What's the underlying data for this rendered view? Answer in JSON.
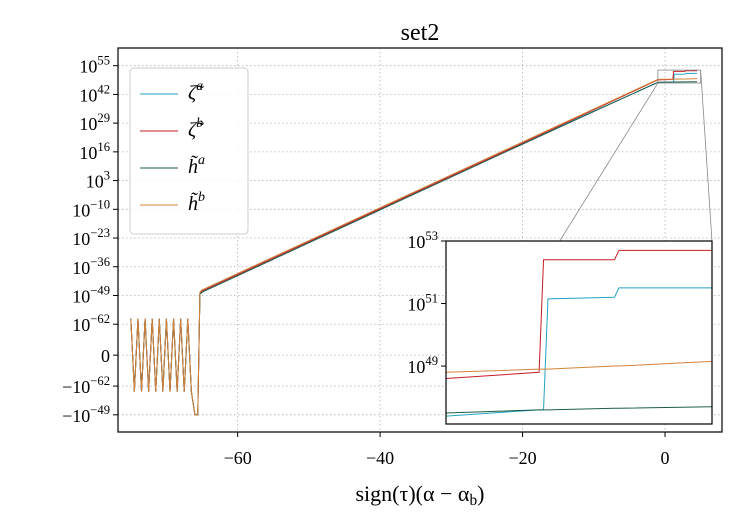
{
  "chart_data": [
    {
      "type": "line",
      "title": "set2",
      "x_label": "sign(τ)(α − α_b)",
      "yscale": "symlog",
      "linthresh": 1e-75,
      "grid": true,
      "legend": "upper left",
      "xlim": [
        -76.8,
        8
      ],
      "ylim": [
        -6e-42,
        1e+63
      ],
      "xticks": [
        {
          "value": -60,
          "label": "−60"
        },
        {
          "value": -40,
          "label": "−40"
        },
        {
          "value": -20,
          "label": "−20"
        },
        0
      ],
      "yticks": [
        {
          "value": 1e+55,
          "label": "10^55"
        },
        {
          "value": 1e+42,
          "label": "10^42"
        },
        {
          "value": 1e+29,
          "label": "10^29"
        },
        {
          "value": 1e+16,
          "label": "10^16"
        },
        {
          "value": 1000.0,
          "label": "10^3"
        },
        {
          "value": 1e-10,
          "label": "10^−10"
        },
        {
          "value": 1e-23,
          "label": "10^−23"
        },
        {
          "value": 1e-36,
          "label": "10^−36"
        },
        {
          "value": 1e-49,
          "label": "10^−49"
        },
        {
          "value": 1e-62,
          "label": "10^−62"
        },
        0,
        {
          "value": -1e-62,
          "label": "−10^−62"
        },
        {
          "value": -1e-49,
          "label": "−10^−49"
        }
      ],
      "x": [
        -75,
        -74.5,
        -74,
        -73.5,
        -73,
        -72.5,
        -72,
        -71.5,
        -71,
        -70.5,
        -70,
        -69.5,
        -69,
        -68.5,
        -68,
        -67.5,
        -67,
        -66.5,
        -66,
        -65.6,
        -65.3,
        -65,
        -40,
        -20,
        -1,
        1.1,
        1.2,
        1.3,
        2.8,
        2.9,
        4.5
      ],
      "series": [
        {
          "name": "ζ̃^a",
          "color": "#23a3c2",
          "values": [
            3e-60,
            -3e-60,
            3e-60,
            -3e-60,
            3e-60,
            -3e-60,
            3e-60,
            -3e-60,
            3e-60,
            -3e-60,
            3e-60,
            -3e-60,
            3e-60,
            -3e-60,
            3e-60,
            -3e-60,
            3e-60,
            -3e-60,
            -1e-49,
            -1e-49,
            1e-48,
            1e-47,
            1.78e-10,
            1e+20,
            2.51e+47,
            3.98e+47,
            3.98e+47,
            1.41e+51,
            1.58e+51,
            3.16e+51,
            3.16e+51
          ]
        },
        {
          "name": "ζ̃^b",
          "color": "#c81d25",
          "values": [
            3e-60,
            -3e-60,
            3e-60,
            -3e-60,
            3e-60,
            -3e-60,
            3e-60,
            -3e-60,
            3e-60,
            -3e-60,
            3e-60,
            -3e-60,
            3e-60,
            -3e-60,
            3e-60,
            -3e-60,
            3e-60,
            -3e-60,
            -1e-49,
            -1e-49,
            1e-48,
            1e-47,
            1.78e-10,
            1e+20,
            3.98e+48,
            6.31e+48,
            2.51e+52,
            2.51e+52,
            2.51e+52,
            5.01e+52,
            5.01e+52
          ]
        },
        {
          "name": "h̃^a",
          "color": "#1d5e48",
          "values": [
            3e-60,
            -3e-60,
            3e-60,
            -3e-60,
            3e-60,
            -3e-60,
            3e-60,
            -3e-60,
            3e-60,
            -3e-60,
            3e-60,
            -3e-60,
            3e-60,
            -3e-60,
            3e-60,
            -3e-60,
            3e-60,
            -3e-60,
            -1e-49,
            -1e-49,
            3.16e-49,
            3.16e-48,
            5.62e-11,
            3.16e+19,
            3.16e+47,
            3.98e+47,
            3.98e+47,
            3.98e+47,
            4.47e+47,
            4.47e+47,
            5.01e+47
          ]
        },
        {
          "name": "h̃^b",
          "color": "#d4843a",
          "values": [
            3e-60,
            -3e-60,
            3e-60,
            -3e-60,
            3e-60,
            -3e-60,
            3e-60,
            -3e-60,
            3e-60,
            -3e-60,
            3e-60,
            -3e-60,
            3e-60,
            -3e-60,
            3e-60,
            -3e-60,
            3e-60,
            -3e-60,
            -1e-49,
            -1e-49,
            3.16e-48,
            3.16e-47,
            5.62e-10,
            3.16e+20,
            6.31e+48,
            7.94e+48,
            7.94e+48,
            7.94e+48,
            1e+49,
            1e+49,
            1.41e+49
          ]
        }
      ]
    },
    {
      "type": "line",
      "yscale": "log",
      "xlim": [
        -1,
        5
      ],
      "ylim": [
        1.4e+47,
        1e+53
      ],
      "yticks": [
        {
          "value": 1e+49,
          "label": "10^49"
        },
        {
          "value": 1e+51,
          "label": "10^51"
        },
        {
          "value": 1e+53,
          "label": "10^53"
        }
      ],
      "x": [
        -1,
        1.1,
        1.2,
        1.3,
        2.8,
        2.9,
        5
      ],
      "series": [
        {
          "color": "#23a3c2",
          "values": [
            2.51e+47,
            3.98e+47,
            3.98e+47,
            1.41e+51,
            1.58e+51,
            3.16e+51,
            3.16e+51
          ]
        },
        {
          "color": "#c81d25",
          "values": [
            3.98e+48,
            6.31e+48,
            2.51e+52,
            2.51e+52,
            2.51e+52,
            5.01e+52,
            5.01e+52
          ]
        },
        {
          "color": "#1d5e48",
          "values": [
            3.16e+47,
            3.98e+47,
            3.98e+47,
            3.98e+47,
            4.47e+47,
            4.47e+47,
            5.01e+47
          ]
        },
        {
          "color": "#d4843a",
          "values": [
            6.31e+48,
            7.94e+48,
            7.94e+48,
            7.94e+48,
            1e+49,
            1e+49,
            1.41e+49
          ]
        }
      ]
    }
  ]
}
